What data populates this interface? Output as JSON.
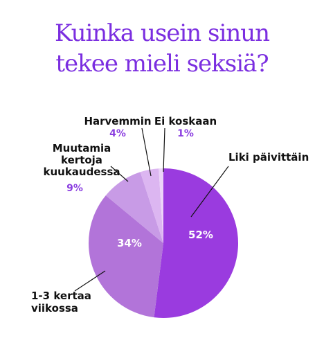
{
  "title_lines": [
    "Kuinka usein sinun",
    "tekee mieli seksiä?"
  ],
  "colors": {
    "title": "#7b2ee0",
    "value_label": "#8b3fe0",
    "leader_line": "#111111"
  },
  "chart_data": {
    "type": "pie",
    "title": "Kuinka usein sinun tekee mieli seksiä?",
    "unit": "%",
    "slices": [
      {
        "label": [
          "Liki päivittäin"
        ],
        "value": 52,
        "value_text": "52%",
        "color": "#9a3bdf",
        "value_inside": true
      },
      {
        "label": [
          "1-3 kertaa",
          "viikossa"
        ],
        "value": 34,
        "value_text": "34%",
        "color": "#b274d9",
        "value_inside": true
      },
      {
        "label": [
          "Muutamia",
          "kertoja",
          "kuukaudessa"
        ],
        "value": 9,
        "value_text": "9%",
        "color": "#c89be6",
        "value_inside": false
      },
      {
        "label": [
          "Harvemmin"
        ],
        "value": 4,
        "value_text": "4%",
        "color": "#dcb6f1",
        "value_inside": false
      },
      {
        "label": [
          "Ei koskaan"
        ],
        "value": 1,
        "value_text": "1%",
        "color": "#ecd4f8",
        "value_inside": false
      }
    ]
  }
}
